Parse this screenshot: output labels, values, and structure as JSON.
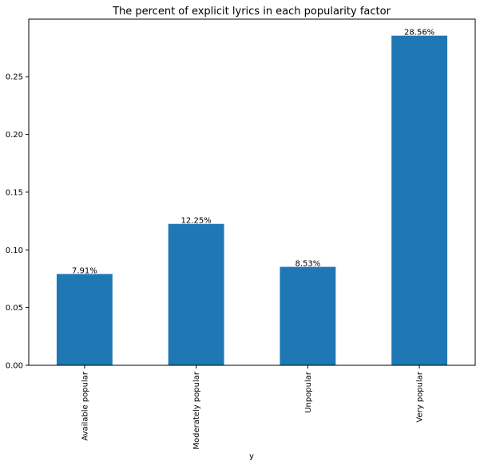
{
  "chart_data": {
    "type": "bar",
    "title": "The percent of explicit lyrics in each popularity factor",
    "xlabel": "y",
    "ylabel": "",
    "categories": [
      "Available popular",
      "Moderately popular",
      "Unpopular",
      "Very popular"
    ],
    "values": [
      0.0791,
      0.1225,
      0.0853,
      0.2856
    ],
    "data_labels": [
      "7.91%",
      "12.25%",
      "8.53%",
      "28.56%"
    ],
    "ylim": [
      0,
      0.2999
    ],
    "yticks": [
      0.0,
      0.05,
      0.1,
      0.15,
      0.2,
      0.25
    ],
    "ytick_labels": [
      "0.00",
      "0.05",
      "0.10",
      "0.15",
      "0.20",
      "0.25"
    ],
    "bar_color": "#1f77b4",
    "grid": false,
    "legend": "none"
  }
}
